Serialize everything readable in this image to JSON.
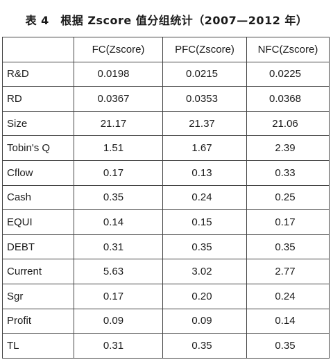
{
  "caption": "表 4　根据 Zscore 值分组统计（2007—2012 年）",
  "table": {
    "headers": [
      "",
      "FC(Zscore)",
      "PFC(Zscore)",
      "NFC(Zscore)"
    ],
    "rows": [
      {
        "var": "R&D",
        "fc": "0.0198",
        "pfc": "0.0215",
        "nfc": "0.0225"
      },
      {
        "var": "RD",
        "fc": "0.0367",
        "pfc": "0.0353",
        "nfc": "0.0368"
      },
      {
        "var": "Size",
        "fc": "21.17",
        "pfc": "21.37",
        "nfc": "21.06"
      },
      {
        "var": "Tobin's Q",
        "fc": "1.51",
        "pfc": "1.67",
        "nfc": "2.39"
      },
      {
        "var": "Cflow",
        "fc": "0.17",
        "pfc": "0.13",
        "nfc": "0.33"
      },
      {
        "var": "Cash",
        "fc": "0.35",
        "pfc": "0.24",
        "nfc": "0.25"
      },
      {
        "var": "EQUI",
        "fc": "0.14",
        "pfc": "0.15",
        "nfc": "0.17"
      },
      {
        "var": "DEBT",
        "fc": "0.31",
        "pfc": "0.35",
        "nfc": "0.35"
      },
      {
        "var": "Current",
        "fc": "5.63",
        "pfc": "3.02",
        "nfc": "2.77"
      },
      {
        "var": "Sgr",
        "fc": "0.17",
        "pfc": "0.20",
        "nfc": "0.24"
      },
      {
        "var": "Profit",
        "fc": "0.09",
        "pfc": "0.09",
        "nfc": "0.14"
      },
      {
        "var": "TL",
        "fc": "0.31",
        "pfc": "0.35",
        "nfc": "0.35"
      }
    ]
  }
}
